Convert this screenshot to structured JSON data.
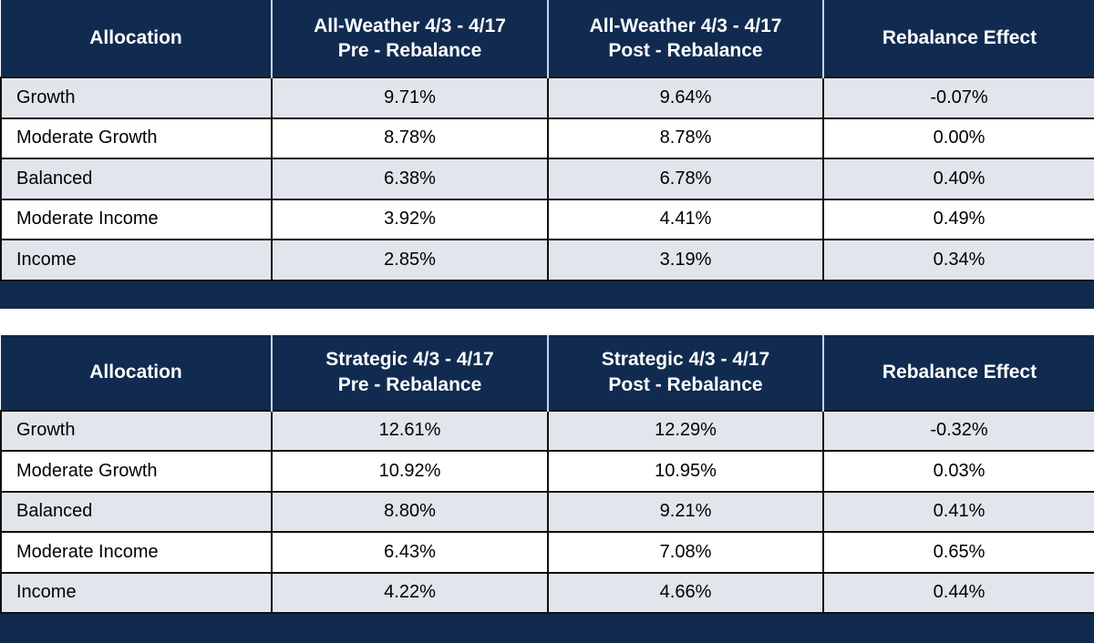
{
  "colors": {
    "navy": "#112B50",
    "row-alt": "#E3E5EC",
    "row-white": "#FFFFFF",
    "grid": "#101010",
    "header-divider": "#C8D3E5",
    "header-text": "#FFFFFF",
    "body-text": "#000000"
  },
  "chart_data": [
    {
      "type": "table",
      "columns": [
        "Allocation",
        "All-Weather 4/3 - 4/17\nPre - Rebalance",
        "All-Weather 4/3 - 4/17\nPost - Rebalance",
        "Rebalance Effect"
      ],
      "rows": [
        [
          "Growth",
          "9.71%",
          "9.64%",
          "-0.07%"
        ],
        [
          "Moderate Growth",
          "8.78%",
          "8.78%",
          "0.00%"
        ],
        [
          "Balanced",
          "6.38%",
          "6.78%",
          "0.40%"
        ],
        [
          "Moderate Income",
          "3.92%",
          "4.41%",
          "0.49%"
        ],
        [
          "Income",
          "2.85%",
          "3.19%",
          "0.34%"
        ]
      ],
      "layout_hints": {
        "header_background": "#112B50",
        "alternating_rows": true,
        "first_column_align": "left",
        "data_columns_align": "center"
      }
    },
    {
      "type": "table",
      "columns": [
        "Allocation",
        "Strategic 4/3 - 4/17\nPre - Rebalance",
        "Strategic 4/3 - 4/17\nPost - Rebalance",
        "Rebalance Effect"
      ],
      "rows": [
        [
          "Growth",
          "12.61%",
          "12.29%",
          "-0.32%"
        ],
        [
          "Moderate Growth",
          "10.92%",
          "10.95%",
          "0.03%"
        ],
        [
          "Balanced",
          "8.80%",
          "9.21%",
          "0.41%"
        ],
        [
          "Moderate Income",
          "6.43%",
          "7.08%",
          "0.65%"
        ],
        [
          "Income",
          "4.22%",
          "4.66%",
          "0.44%"
        ]
      ],
      "layout_hints": {
        "header_background": "#112B50",
        "alternating_rows": true,
        "first_column_align": "left",
        "data_columns_align": "center"
      }
    }
  ]
}
